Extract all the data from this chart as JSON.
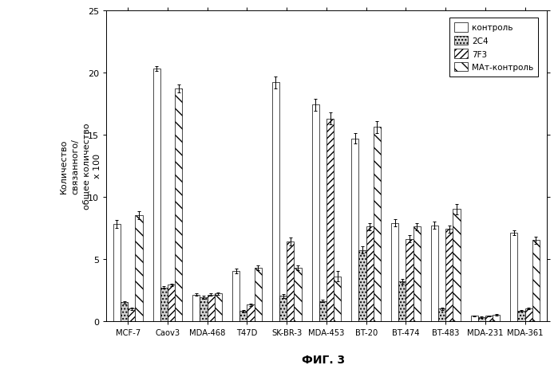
{
  "categories": [
    "MCF-7",
    "Caov3",
    "MDA-468",
    "T47D",
    "SK-BR-3",
    "MDA-453",
    "BT-20",
    "BT-474",
    "BT-483",
    "MDA-231",
    "MDA-361"
  ],
  "series": {
    "контроль": [
      7.8,
      20.3,
      2.1,
      4.0,
      19.2,
      17.4,
      14.7,
      7.9,
      7.7,
      0.4,
      7.1
    ],
    "2C4": [
      1.5,
      2.7,
      1.9,
      0.8,
      2.0,
      1.6,
      5.7,
      3.2,
      1.0,
      0.3,
      0.8
    ],
    "7F3": [
      1.0,
      2.9,
      2.1,
      1.3,
      6.4,
      16.3,
      7.6,
      6.6,
      7.4,
      0.4,
      1.0
    ],
    "МАт-контроль": [
      8.5,
      18.7,
      2.2,
      4.3,
      4.3,
      3.6,
      15.6,
      7.6,
      9.0,
      0.5,
      6.5
    ]
  },
  "errors": {
    "контроль": [
      0.3,
      0.2,
      0.1,
      0.2,
      0.5,
      0.5,
      0.4,
      0.3,
      0.3,
      0.05,
      0.2
    ],
    "2C4": [
      0.1,
      0.1,
      0.1,
      0.1,
      0.15,
      0.1,
      0.3,
      0.2,
      0.1,
      0.05,
      0.05
    ],
    "7F3": [
      0.1,
      0.1,
      0.1,
      0.1,
      0.3,
      0.5,
      0.3,
      0.3,
      0.3,
      0.05,
      0.05
    ],
    "МАт-контроль": [
      0.3,
      0.3,
      0.1,
      0.2,
      0.2,
      0.4,
      0.5,
      0.3,
      0.4,
      0.05,
      0.3
    ]
  },
  "legend_labels": [
    "контроль",
    "2C4",
    "7F3",
    "МАт-контроль"
  ],
  "ylabel_lines": [
    "Количество",
    "связанного/",
    "общее количество",
    "x 100"
  ],
  "figure_label": "ФИГ. 3",
  "ylim": [
    0,
    25
  ],
  "yticks": [
    0,
    5,
    10,
    15,
    20,
    25
  ],
  "bar_width": 0.185,
  "background_color": "#ffffff",
  "edge_color": "#000000",
  "fig_width": 6.99,
  "fig_height": 4.64,
  "dpi": 100
}
